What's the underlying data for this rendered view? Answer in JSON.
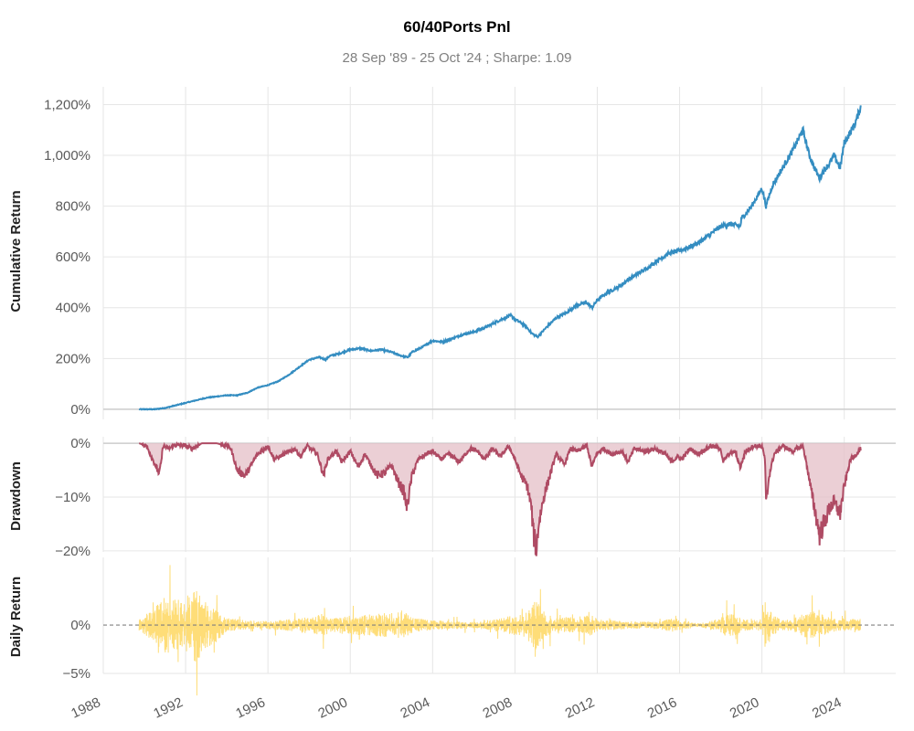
{
  "chart_data": {
    "type": "line",
    "title": "60/40Ports Pnl",
    "subtitle": "28 Sep '89 - 25 Oct '24 ;  Sharpe: 1.09",
    "x_axis": {
      "range": [
        1988,
        2026.5
      ],
      "ticks": [
        "1988",
        "1992",
        "1996",
        "2000",
        "2004",
        "2008",
        "2012",
        "2016",
        "2020",
        "2024"
      ]
    },
    "colors": {
      "cumulative": "#348dc1",
      "drawdown": "#af4b64",
      "drawdown_fill": "#e6c3cb",
      "daily": "#fedd78",
      "zero_line": "#808080",
      "grid": "#e6e6e6"
    },
    "panels": [
      {
        "name": "Cumulative Return",
        "ylabel": "Cumulative Return",
        "ylim": [
          -0.4,
          12.7
        ],
        "ticks": [
          0,
          200,
          400,
          600,
          800,
          1000,
          1200
        ],
        "tick_labels": [
          "0%",
          "200%",
          "400%",
          "600%",
          "800%",
          "1,000%",
          "1,200%"
        ],
        "series": [
          {
            "x": [
              1989.74,
              1990.5,
              1991.0,
              1991.5,
              1992.0,
              1992.5,
              1993.0,
              1993.5,
              1994.0,
              1994.5,
              1995.0,
              1995.5,
              1996.0,
              1996.5,
              1997.0,
              1997.5,
              1998.0,
              1998.5,
              1998.8,
              1999.0,
              1999.5,
              2000.0,
              2000.5,
              2001.0,
              2001.5,
              2002.0,
              2002.5,
              2002.8,
              2003.0,
              2003.5,
              2004.0,
              2004.5,
              2005.0,
              2005.5,
              2006.0,
              2006.5,
              2007.0,
              2007.5,
              2007.8,
              2008.0,
              2008.5,
              2008.8,
              2009.1,
              2009.5,
              2010.0,
              2010.5,
              2011.0,
              2011.5,
              2011.75,
              2012.0,
              2012.5,
              2013.0,
              2013.5,
              2014.0,
              2014.5,
              2015.0,
              2015.5,
              2016.0,
              2016.5,
              2017.0,
              2017.5,
              2018.0,
              2018.5,
              2018.95,
              2019.0,
              2019.5,
              2020.0,
              2020.2,
              2020.5,
              2021.0,
              2021.5,
              2021.99,
              2022.3,
              2022.5,
              2022.8,
              2023.0,
              2023.3,
              2023.5,
              2023.8,
              2024.0,
              2024.5,
              2024.8
            ],
            "y": [
              0,
              0,
              5,
              15,
              25,
              35,
              45,
              50,
              55,
              55,
              65,
              85,
              95,
              110,
              135,
              165,
              195,
              205,
              195,
              210,
              220,
              235,
              240,
              230,
              235,
              225,
              210,
              205,
              225,
              245,
              270,
              265,
              280,
              295,
              305,
              320,
              340,
              360,
              370,
              355,
              330,
              300,
              285,
              320,
              360,
              380,
              410,
              420,
              400,
              430,
              460,
              480,
              510,
              535,
              560,
              590,
              615,
              625,
              640,
              660,
              690,
              720,
              730,
              720,
              750,
              800,
              870,
              800,
              880,
              950,
              1020,
              1100,
              1000,
              960,
              910,
              940,
              970,
              1000,
              950,
              1050,
              1120,
              1190
            ]
          }
        ]
      },
      {
        "name": "Drawdown",
        "ylabel": "Drawdown",
        "ylim": [
          -20.2,
          1.2
        ],
        "ticks": [
          0,
          -10,
          -20
        ],
        "tick_labels": [
          "0%",
          "−10%",
          "−20%"
        ],
        "series": [
          {
            "x": [
              1989.74,
              1990.1,
              1990.4,
              1990.7,
              1990.8,
              1990.9,
              1991.2,
              1991.5,
              1992.0,
              1992.3,
              1992.8,
              1993.5,
              1994.0,
              1994.2,
              1994.5,
              1994.9,
              1995.5,
              1996.0,
              1996.3,
              1996.8,
              1997.3,
              1997.6,
              1997.9,
              1998.4,
              1998.7,
              1998.9,
              1999.3,
              1999.6,
              2000.0,
              2000.4,
              2000.7,
              2001.0,
              2001.3,
              2001.7,
              2002.0,
              2002.3,
              2002.6,
              2002.75,
              2003.0,
              2003.3,
              2003.7,
              2004.0,
              2004.4,
              2004.8,
              2005.3,
              2005.8,
              2006.2,
              2006.5,
              2006.9,
              2007.3,
              2007.7,
              2008.0,
              2008.3,
              2008.6,
              2008.8,
              2008.9,
              2009.05,
              2009.15,
              2009.4,
              2009.7,
              2010.0,
              2010.4,
              2010.7,
              2011.0,
              2011.5,
              2011.75,
              2011.95,
              2012.3,
              2012.7,
              2013.2,
              2013.5,
              2013.8,
              2014.3,
              2014.8,
              2015.3,
              2015.6,
              2015.9,
              2016.1,
              2016.5,
              2016.9,
              2017.5,
              2018.0,
              2018.1,
              2018.4,
              2018.7,
              2018.95,
              2019.2,
              2019.6,
              2020.0,
              2020.15,
              2020.2,
              2020.35,
              2020.6,
              2021.0,
              2021.5,
              2021.99,
              2022.2,
              2022.4,
              2022.6,
              2022.8,
              2022.9,
              2023.1,
              2023.3,
              2023.5,
              2023.8,
              2024.0,
              2024.3,
              2024.6,
              2024.8
            ],
            "y": [
              0,
              -0.5,
              -3.0,
              -5.5,
              -4.0,
              -0.5,
              -1.0,
              -0.3,
              -0.5,
              -1.0,
              0,
              0,
              -0.5,
              -1.0,
              -5.0,
              -6.0,
              -2.0,
              -0.5,
              -3.0,
              -2.0,
              -1.0,
              -2.5,
              -0.5,
              -2.0,
              -6.0,
              -3.0,
              -1.5,
              -3.5,
              -1.5,
              -4.5,
              -2.0,
              -4.0,
              -6.0,
              -5.5,
              -4.0,
              -7.0,
              -9.0,
              -12.0,
              -6.0,
              -3.0,
              -2.0,
              -1.5,
              -3.0,
              -2.0,
              -3.5,
              -1.0,
              -1.5,
              -3.0,
              -1.0,
              -2.5,
              -0.5,
              -3.0,
              -6.0,
              -8.0,
              -12.0,
              -17.0,
              -19.5,
              -15.0,
              -10.0,
              -6.0,
              -2.0,
              -4.0,
              -1.0,
              -1.5,
              -0.5,
              -4.5,
              -2.0,
              -1.0,
              -2.0,
              -1.5,
              -3.5,
              -1.0,
              -1.5,
              -1.0,
              -2.0,
              -3.5,
              -2.5,
              -3.0,
              -1.0,
              -2.0,
              -0.5,
              -1.0,
              -3.5,
              -2.0,
              -1.5,
              -4.5,
              -1.5,
              -0.5,
              -0.5,
              -3.0,
              -11.5,
              -6.0,
              -2.0,
              -0.5,
              -1.5,
              -0.5,
              -4.5,
              -9.0,
              -13.0,
              -17.0,
              -16.0,
              -14.0,
              -12.0,
              -11.0,
              -13.0,
              -8.0,
              -3.0,
              -2.0,
              -1.0
            ]
          }
        ]
      },
      {
        "name": "Daily Return",
        "ylabel": "Daily Return",
        "ylim": [
          -5,
          7
        ],
        "ticks": [
          0,
          -5
        ],
        "tick_labels": [
          "0%",
          "−5%"
        ],
        "zero_line": "dashed",
        "series": [
          {
            "note": "noisy daily returns with volatility spikes",
            "x": [
              1989.74,
              1990.0,
              1990.5,
              1991.0,
              1991.5,
              1992.0,
              1992.5,
              1993.0,
              1993.5,
              1994.0,
              1994.5,
              1995.0,
              1996.0,
              1997.0,
              1997.8,
              1998.0,
              1998.7,
              1999.0,
              2000.0,
              2001.0,
              2001.7,
              2002.0,
              2002.6,
              2003.0,
              2004.0,
              2005.0,
              2006.0,
              2007.0,
              2007.7,
              2008.0,
              2008.5,
              2008.8,
              2009.0,
              2009.3,
              2009.8,
              2010.5,
              2011.0,
              2011.7,
              2012.0,
              2013.0,
              2014.0,
              2015.0,
              2015.6,
              2016.0,
              2017.0,
              2018.0,
              2018.1,
              2018.9,
              2019.0,
              2019.5,
              2020.0,
              2020.2,
              2020.5,
              2021.0,
              2021.5,
              2022.0,
              2022.5,
              2023.0,
              2023.5,
              2024.0,
              2024.5,
              2024.8
            ],
            "amp": [
              0.8,
              1.5,
              2.5,
              4.5,
              3.8,
              4.2,
              5.5,
              3.5,
              2.5,
              1.0,
              0.9,
              0.7,
              0.6,
              0.9,
              1.2,
              1.0,
              1.8,
              1.0,
              1.5,
              1.6,
              1.8,
              1.8,
              2.0,
              1.2,
              0.7,
              0.6,
              0.5,
              0.9,
              1.3,
              1.5,
              1.8,
              3.0,
              4.0,
              2.5,
              1.2,
              1.3,
              1.0,
              1.6,
              0.9,
              0.7,
              0.5,
              0.6,
              1.0,
              0.7,
              0.3,
              1.0,
              1.8,
              1.4,
              1.0,
              0.7,
              1.0,
              4.0,
              1.5,
              0.8,
              0.9,
              1.8,
              2.0,
              1.5,
              1.0,
              1.0,
              0.9,
              1.0
            ]
          }
        ]
      }
    ]
  }
}
